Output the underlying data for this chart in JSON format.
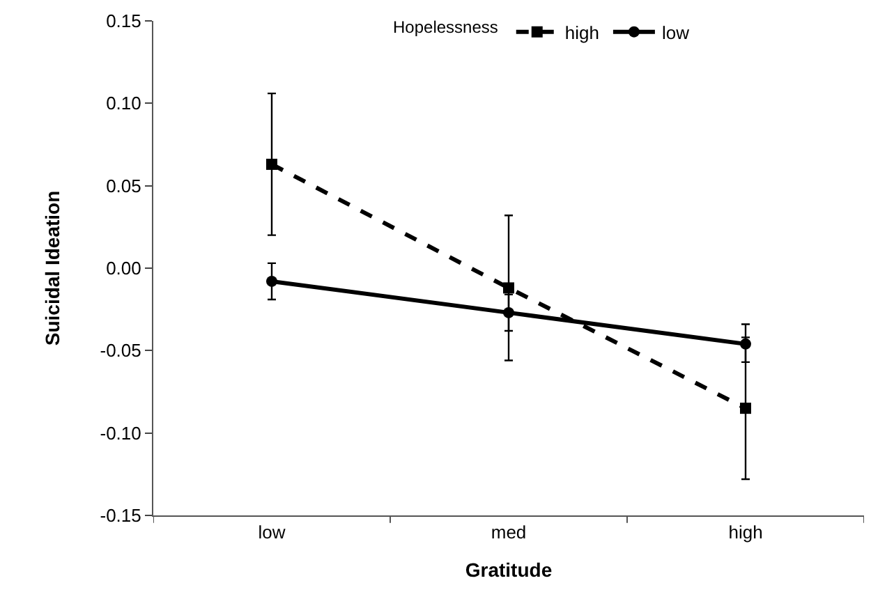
{
  "chart_data": {
    "type": "line",
    "xlabel": "Gratitude",
    "ylabel": "Suicidal Ideation",
    "legend_title": "Hopelessness",
    "categories": [
      "low",
      "med",
      "high"
    ],
    "series": [
      {
        "name": "high",
        "color": "#000000",
        "values": [
          0.063,
          -0.012,
          -0.085
        ],
        "errors": [
          [
            0.02,
            0.106
          ],
          [
            -0.056,
            0.032
          ],
          [
            -0.128,
            -0.042
          ]
        ],
        "marker": "square",
        "line_style": "dashed"
      },
      {
        "name": "low",
        "color": "#000000",
        "values": [
          -0.008,
          -0.027,
          -0.046
        ],
        "errors": [
          [
            -0.019,
            0.003
          ],
          [
            -0.038,
            -0.016
          ],
          [
            -0.057,
            -0.034
          ]
        ],
        "marker": "circle",
        "line_style": "solid"
      }
    ],
    "ylim": [
      -0.15,
      0.15
    ],
    "yticks": [
      {
        "value": -0.15,
        "label": "-0.15"
      },
      {
        "value": -0.1,
        "label": "-0.10"
      },
      {
        "value": -0.05,
        "label": "-0.05"
      },
      {
        "value": 0,
        "label": "0.00"
      },
      {
        "value": 0.05,
        "label": "0.05"
      },
      {
        "value": 0.1,
        "label": "0.10"
      },
      {
        "value": 0.15,
        "label": "0.15"
      }
    ],
    "legend": "top"
  }
}
